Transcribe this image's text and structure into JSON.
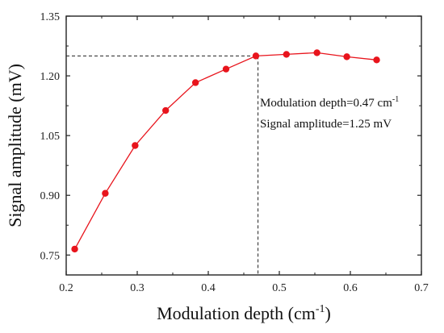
{
  "chart_data": {
    "type": "line",
    "xlabel": "Modulation depth (cm",
    "xlabel_sup": "-1",
    "xlabel_end": ")",
    "ylabel": "Signal amplitude (mV)",
    "xlim": [
      0.2,
      0.7
    ],
    "ylim": [
      0.7,
      1.35
    ],
    "x_ticks": [
      "0.2",
      "0.3",
      "0.4",
      "0.5",
      "0.6",
      "0.7"
    ],
    "y_ticks": [
      "0.75",
      "0.90",
      "1.05",
      "1.20",
      "1.35"
    ],
    "grid": false,
    "series": [
      {
        "color": "#e8141c",
        "x": [
          0.212,
          0.255,
          0.297,
          0.34,
          0.382,
          0.425,
          0.467,
          0.51,
          0.553,
          0.595,
          0.637
        ],
        "y": [
          0.765,
          0.905,
          1.025,
          1.113,
          1.183,
          1.217,
          1.25,
          1.254,
          1.258,
          1.248,
          1.24
        ]
      }
    ],
    "reference": {
      "x": 0.47,
      "y": 1.25
    },
    "annotations": [
      {
        "text": "Modulation depth=0.47 cm",
        "sup": "-1"
      },
      {
        "text": "Signal amplitude=1.25 mV",
        "sup": ""
      }
    ]
  }
}
